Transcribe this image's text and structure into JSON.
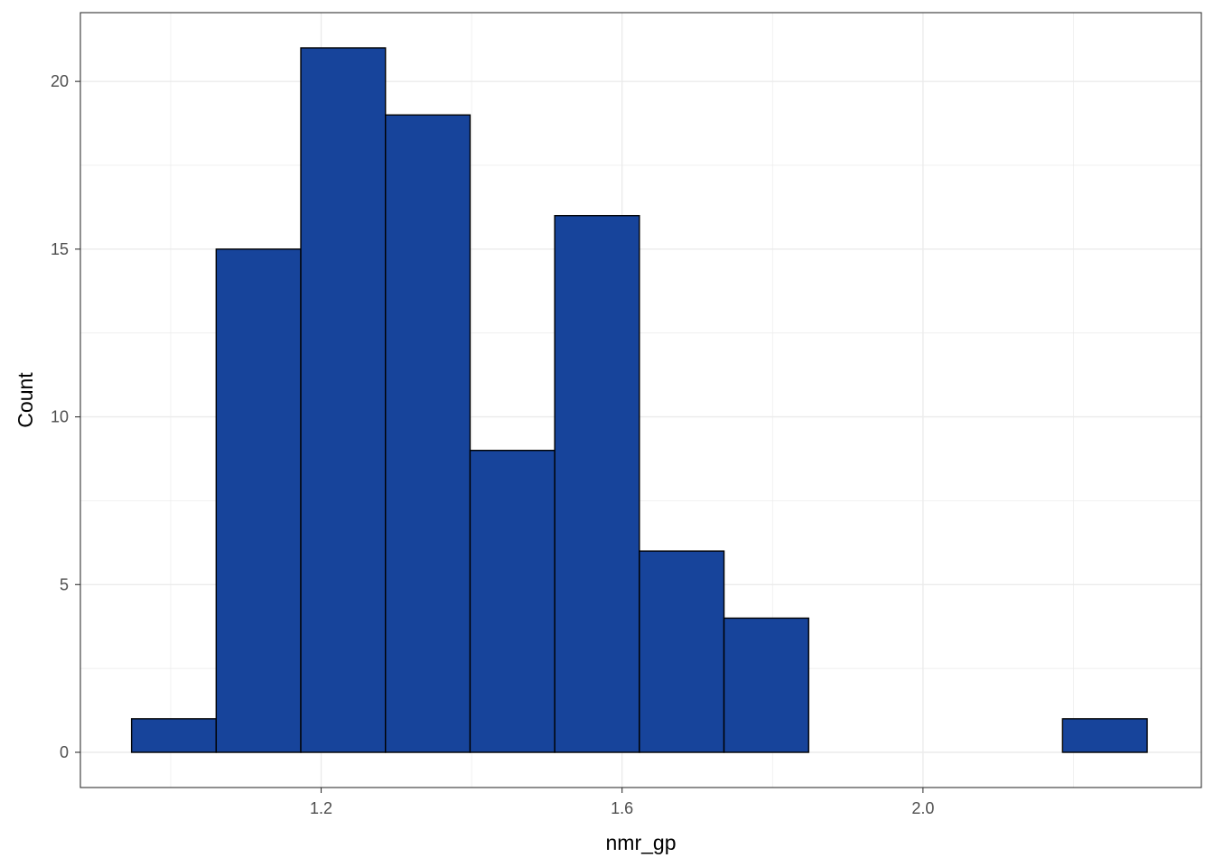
{
  "chart_data": {
    "type": "bar",
    "subtype": "histogram",
    "title": "",
    "xlabel": "nmr_gp",
    "ylabel": "Count",
    "bins": [
      {
        "x0": 0.948,
        "x1": 1.0605,
        "count": 1
      },
      {
        "x0": 1.0605,
        "x1": 1.173,
        "count": 15
      },
      {
        "x0": 1.173,
        "x1": 1.2855,
        "count": 21
      },
      {
        "x0": 1.2855,
        "x1": 1.398,
        "count": 19
      },
      {
        "x0": 1.398,
        "x1": 1.5105,
        "count": 9
      },
      {
        "x0": 1.5105,
        "x1": 1.623,
        "count": 16
      },
      {
        "x0": 1.623,
        "x1": 1.7355,
        "count": 6
      },
      {
        "x0": 1.7355,
        "x1": 1.848,
        "count": 4
      },
      {
        "x0": 1.848,
        "x1": 1.9605,
        "count": 0
      },
      {
        "x0": 1.9605,
        "x1": 2.073,
        "count": 0
      },
      {
        "x0": 2.073,
        "x1": 2.1855,
        "count": 0
      },
      {
        "x0": 2.1855,
        "x1": 2.298,
        "count": 1
      }
    ],
    "xlim": [
      0.88,
      2.37
    ],
    "ylim": [
      -1.05,
      22.05
    ],
    "x_ticks": [
      {
        "value": 1.2,
        "label": "1.2"
      },
      {
        "value": 1.6,
        "label": "1.6"
      },
      {
        "value": 2.0,
        "label": "2.0"
      }
    ],
    "x_minor": [
      1.0,
      1.4,
      1.8,
      2.2
    ],
    "y_ticks": [
      {
        "value": 0,
        "label": "0"
      },
      {
        "value": 5,
        "label": "5"
      },
      {
        "value": 10,
        "label": "10"
      },
      {
        "value": 15,
        "label": "15"
      },
      {
        "value": 20,
        "label": "20"
      }
    ],
    "y_minor": [
      2.5,
      7.5,
      12.5,
      17.5
    ],
    "grid": true,
    "legend": "none",
    "colors": {
      "fill": "#17449b",
      "stroke": "#000000",
      "grid": "#ebebeb",
      "panel_border": "#333333"
    }
  }
}
